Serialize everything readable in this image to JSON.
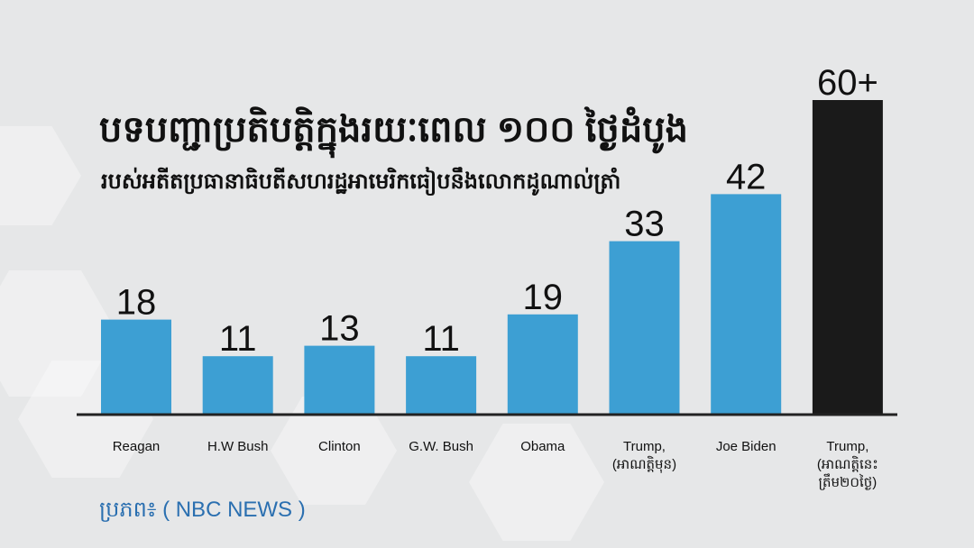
{
  "chart_data": {
    "type": "bar",
    "title": "បទបញ្ជាប្រតិបត្តិក្នុងរយៈពេល ១០០ ថ្ងៃដំបូង",
    "subtitle": "របស់អតីតប្រធានាធិបតីសហរដ្ឋអាមេរិកធៀបនឹងលោកដូណាល់ត្រាំ",
    "categories": [
      [
        "Reagan"
      ],
      [
        "H.W Bush"
      ],
      [
        "Clinton"
      ],
      [
        "G.W. Bush"
      ],
      [
        "Obama"
      ],
      [
        "Trump,",
        "(អាណត្តិមុន)"
      ],
      [
        "Joe Biden"
      ],
      [
        "Trump,",
        "(អាណត្តិនេះ",
        "ត្រឹម២០ថ្ងៃ)"
      ]
    ],
    "values": [
      18,
      11,
      13,
      11,
      19,
      33,
      42,
      60
    ],
    "data_labels": [
      "18",
      "11",
      "13",
      "11",
      "19",
      "33",
      "42",
      "60+"
    ],
    "colors": [
      "#3d9fd3",
      "#3d9fd3",
      "#3d9fd3",
      "#3d9fd3",
      "#3d9fd3",
      "#3d9fd3",
      "#3d9fd3",
      "#1a1a1a"
    ],
    "xlabel": "",
    "ylabel": "",
    "ylim": [
      0,
      60
    ],
    "grid": false,
    "source": "ប្រភព៖ ( NBC NEWS )"
  }
}
